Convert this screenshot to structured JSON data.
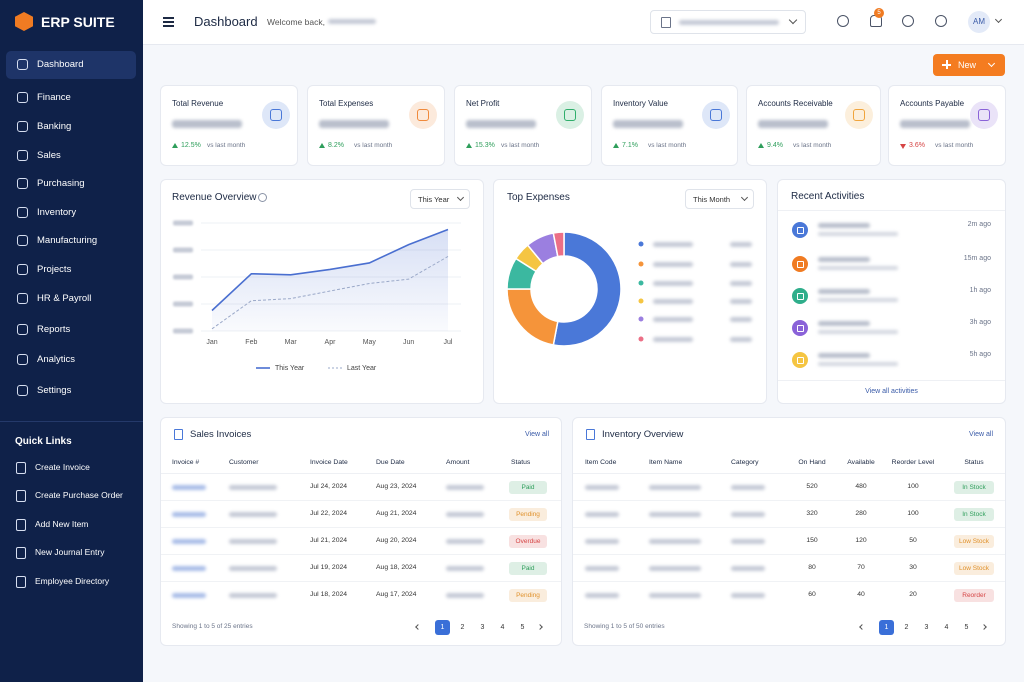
{
  "brand": "ERP SUITE",
  "nav": [
    "Dashboard",
    "Finance",
    "Banking",
    "Sales",
    "Purchasing",
    "Inventory",
    "Manufacturing",
    "Projects",
    "HR & Payroll",
    "Reports",
    "Analytics",
    "Settings"
  ],
  "quick_links": {
    "title": "Quick Links",
    "items": [
      "Create Invoice",
      "Create Purchase Order",
      "Add New Item",
      "New Journal Entry",
      "Employee Directory"
    ]
  },
  "header": {
    "title": "Dashboard",
    "welcome": "Welcome back,",
    "notifications": 5,
    "avatar": "AM"
  },
  "new_button": "New",
  "kpis": [
    {
      "label": "Total Revenue",
      "change": "12.5%",
      "trend": "up",
      "note": "vs last month",
      "color": "#4a78d8"
    },
    {
      "label": "Total Expenses",
      "change": "8.2%",
      "trend": "up",
      "note": "vs last month",
      "color": "#f08a3c"
    },
    {
      "label": "Net Profit",
      "change": "15.3%",
      "trend": "up",
      "note": "vs last month",
      "color": "#2fae6b"
    },
    {
      "label": "Inventory Value",
      "change": "7.1%",
      "trend": "up",
      "note": "vs last month",
      "color": "#4a78d8"
    },
    {
      "label": "Accounts Receivable",
      "change": "9.4%",
      "trend": "up",
      "note": "vs last month",
      "color": "#f0a43c"
    },
    {
      "label": "Accounts Payable",
      "change": "3.6%",
      "trend": "down",
      "note": "vs last month",
      "color": "#8a62d8"
    }
  ],
  "chart_data": [
    {
      "type": "line",
      "title": "Revenue Overview",
      "selector": "This Year",
      "categories": [
        "Jan",
        "Feb",
        "Mar",
        "Apr",
        "May",
        "Jun",
        "Jul"
      ],
      "series": [
        {
          "name": "This Year",
          "color": "#4a6fd0",
          "values": [
            19,
            53,
            52,
            57,
            63,
            80,
            94
          ]
        },
        {
          "name": "Last Year",
          "color": "#9aa8c8",
          "dashed": true,
          "values": [
            2,
            28,
            30,
            37,
            44,
            48,
            69
          ]
        }
      ],
      "ylim": [
        0,
        100
      ],
      "yticks": [
        0,
        25,
        50,
        75,
        100
      ],
      "grid": true
    },
    {
      "type": "pie",
      "donut": true,
      "title": "Top Expenses",
      "selector": "This Month",
      "categories": [
        null,
        null,
        null,
        null,
        null,
        null
      ],
      "values": [
        53,
        22,
        9,
        5,
        8,
        3
      ],
      "colors": [
        "#4a78d8",
        "#f5943a",
        "#3bb8a0",
        "#f5c542",
        "#9b7fe0",
        "#ec6f86"
      ]
    }
  ],
  "activities": {
    "title": "Recent Activities",
    "items": [
      {
        "color": "#4a78d8",
        "time": "2m ago"
      },
      {
        "color": "#f07b22",
        "time": "15m ago"
      },
      {
        "color": "#2fae8b",
        "time": "1h ago"
      },
      {
        "color": "#8a62d8",
        "time": "3h ago"
      },
      {
        "color": "#f5c542",
        "time": "5h ago"
      }
    ],
    "link": "View all activities"
  },
  "status_colors": {
    "Paid": "#2e9e5b",
    "Pending": "#e0912b",
    "Overdue": "#d64545",
    "In Stock": "#2e9e5b",
    "Low Stock": "#e0912b",
    "Reorder": "#d64545"
  },
  "sales_invoices": {
    "title": "Sales Invoices",
    "link": "View all",
    "columns": [
      "Invoice #",
      "Customer",
      "Invoice Date",
      "Due Date",
      "Amount",
      "Status"
    ],
    "rows": [
      [
        "Jul 24, 2024",
        "Aug 23, 2024",
        "Paid"
      ],
      [
        "Jul 22, 2024",
        "Aug 21, 2024",
        "Pending"
      ],
      [
        "Jul 21, 2024",
        "Aug 20, 2024",
        "Overdue"
      ],
      [
        "Jul 19, 2024",
        "Aug 18, 2024",
        "Paid"
      ],
      [
        "Jul 18, 2024",
        "Aug 17, 2024",
        "Pending"
      ]
    ],
    "footer": "Showing 1 to 5 of 25 entries",
    "pages": [
      1,
      2,
      3,
      4,
      5
    ]
  },
  "inventory": {
    "title": "Inventory Overview",
    "link": "View all",
    "columns": [
      "Item Code",
      "Item Name",
      "Category",
      "On Hand",
      "Available",
      "Reorder Level",
      "Status"
    ],
    "rows": [
      [
        520,
        480,
        100,
        "In Stock"
      ],
      [
        320,
        280,
        100,
        "In Stock"
      ],
      [
        150,
        120,
        50,
        "Low Stock"
      ],
      [
        80,
        70,
        30,
        "Low Stock"
      ],
      [
        60,
        40,
        20,
        "Reorder"
      ]
    ],
    "footer": "Showing 1 to 5 of 50 entries",
    "pages": [
      1,
      2,
      3,
      4,
      5
    ]
  }
}
